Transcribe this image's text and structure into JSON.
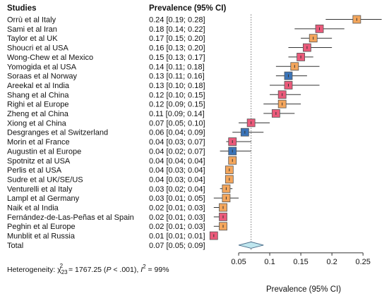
{
  "chart_data": {
    "type": "forest",
    "column_headers": {
      "studies": "Studies",
      "estimate": "Prevalence (95% CI)"
    },
    "xlabel": "Prevalence (95% CI)",
    "xlim": [
      0.0,
      0.285
    ],
    "xticks": [
      0.05,
      0.1,
      0.15,
      0.2,
      0.25
    ],
    "xtick_labels": [
      "0.05",
      "0.1",
      "0.15",
      "0.2",
      "0.25"
    ],
    "reference_line": 0.07,
    "colors": {
      "orange": "#f4a65c",
      "pink": "#ea5a7a",
      "blue": "#3b74b8",
      "diamond": "#bfe6ee"
    },
    "studies": [
      {
        "name": "Orrù et al Italy",
        "label": "0.24 [0.19; 0.28]",
        "est": 0.24,
        "lo": 0.19,
        "hi": 0.28,
        "color": "orange"
      },
      {
        "name": "Sami et al Iran",
        "label": "0.18 [0.14; 0.22]",
        "est": 0.18,
        "lo": 0.14,
        "hi": 0.22,
        "color": "pink"
      },
      {
        "name": "Taylor et al UK",
        "label": "0.17 [0.15; 0.20]",
        "est": 0.17,
        "lo": 0.15,
        "hi": 0.2,
        "color": "orange"
      },
      {
        "name": "Shoucri et al USA",
        "label": "0.16 [0.13; 0.20]",
        "est": 0.16,
        "lo": 0.13,
        "hi": 0.2,
        "color": "pink"
      },
      {
        "name": "Wong-Chew et al Mexico",
        "label": "0.15 [0.13; 0.17]",
        "est": 0.15,
        "lo": 0.13,
        "hi": 0.17,
        "color": "pink"
      },
      {
        "name": "Yomogida et al USA",
        "label": "0.14 [0.11; 0.18]",
        "est": 0.14,
        "lo": 0.11,
        "hi": 0.18,
        "color": "orange"
      },
      {
        "name": "Soraas  et al Norway",
        "label": "0.13 [0.11; 0.16]",
        "est": 0.13,
        "lo": 0.11,
        "hi": 0.16,
        "color": "blue"
      },
      {
        "name": "Areekal et al India",
        "label": "0.13 [0.10; 0.18]",
        "est": 0.13,
        "lo": 0.1,
        "hi": 0.18,
        "color": "pink"
      },
      {
        "name": "Shang et al China",
        "label": "0.12 [0.10; 0.15]",
        "est": 0.12,
        "lo": 0.1,
        "hi": 0.15,
        "color": "pink"
      },
      {
        "name": "Righi et al Europe",
        "label": "0.12 [0.09; 0.15]",
        "est": 0.12,
        "lo": 0.09,
        "hi": 0.15,
        "color": "orange"
      },
      {
        "name": "Zheng et al China",
        "label": "0.11 [0.09; 0.14]",
        "est": 0.11,
        "lo": 0.09,
        "hi": 0.14,
        "color": "pink"
      },
      {
        "name": "Xiong et al China",
        "label": "0.07 [0.05; 0.10]",
        "est": 0.07,
        "lo": 0.05,
        "hi": 0.1,
        "color": "pink"
      },
      {
        "name": "Desgranges et al Switzerland",
        "label": "0.06 [0.04; 0.09]",
        "est": 0.06,
        "lo": 0.04,
        "hi": 0.09,
        "color": "blue"
      },
      {
        "name": "Morin et al France",
        "label": "0.04 [0.03; 0.07]",
        "est": 0.04,
        "lo": 0.03,
        "hi": 0.07,
        "color": "pink"
      },
      {
        "name": "Augustin et al Europe",
        "label": "0.04 [0.02; 0.07]",
        "est": 0.04,
        "lo": 0.02,
        "hi": 0.07,
        "color": "blue"
      },
      {
        "name": "Spotnitz et al USA",
        "label": "0.04 [0.04; 0.04]",
        "est": 0.04,
        "lo": 0.04,
        "hi": 0.04,
        "color": "orange"
      },
      {
        "name": "Perlis et al USA",
        "label": "0.04 [0.03; 0.04]",
        "est": 0.035,
        "lo": 0.03,
        "hi": 0.04,
        "color": "orange"
      },
      {
        "name": "Sudre et al UK/SE/US",
        "label": "0.04 [0.03; 0.04]",
        "est": 0.035,
        "lo": 0.03,
        "hi": 0.04,
        "color": "orange"
      },
      {
        "name": "Venturelli et al Italy",
        "label": "0.03 [0.02; 0.04]",
        "est": 0.03,
        "lo": 0.02,
        "hi": 0.04,
        "color": "orange"
      },
      {
        "name": "Lampl et al Germany",
        "label": "0.03 [0.01; 0.05]",
        "est": 0.03,
        "lo": 0.01,
        "hi": 0.05,
        "color": "orange"
      },
      {
        "name": "Naik et al India",
        "label": "0.02 [0.01; 0.03]",
        "est": 0.025,
        "lo": 0.01,
        "hi": 0.03,
        "color": "orange"
      },
      {
        "name": "Fernández-de-Las-Peñas et al Spain",
        "label": "0.02 [0.01; 0.03]",
        "est": 0.025,
        "lo": 0.01,
        "hi": 0.03,
        "color": "pink"
      },
      {
        "name": "Peghin et al Europe",
        "label": "0.02 [0.01; 0.03]",
        "est": 0.025,
        "lo": 0.01,
        "hi": 0.03,
        "color": "orange"
      },
      {
        "name": "Munblit et al Russia",
        "label": "0.01 [0.01; 0.01]",
        "est": 0.01,
        "lo": 0.01,
        "hi": 0.01,
        "color": "pink"
      }
    ],
    "total": {
      "name": "Total",
      "label": "0.07 [0.05; 0.09]",
      "est": 0.07,
      "lo": 0.05,
      "hi": 0.09
    },
    "heterogeneity": {
      "prefix": "Heterogeneity: χ",
      "sub": "23",
      "sup": "2",
      "value": " = 1767.25 (",
      "p_symbol": "P",
      "p_text": " < .001), ",
      "i_symbol": "I",
      "i_sup": "2",
      "i_text": " = 99%"
    }
  }
}
